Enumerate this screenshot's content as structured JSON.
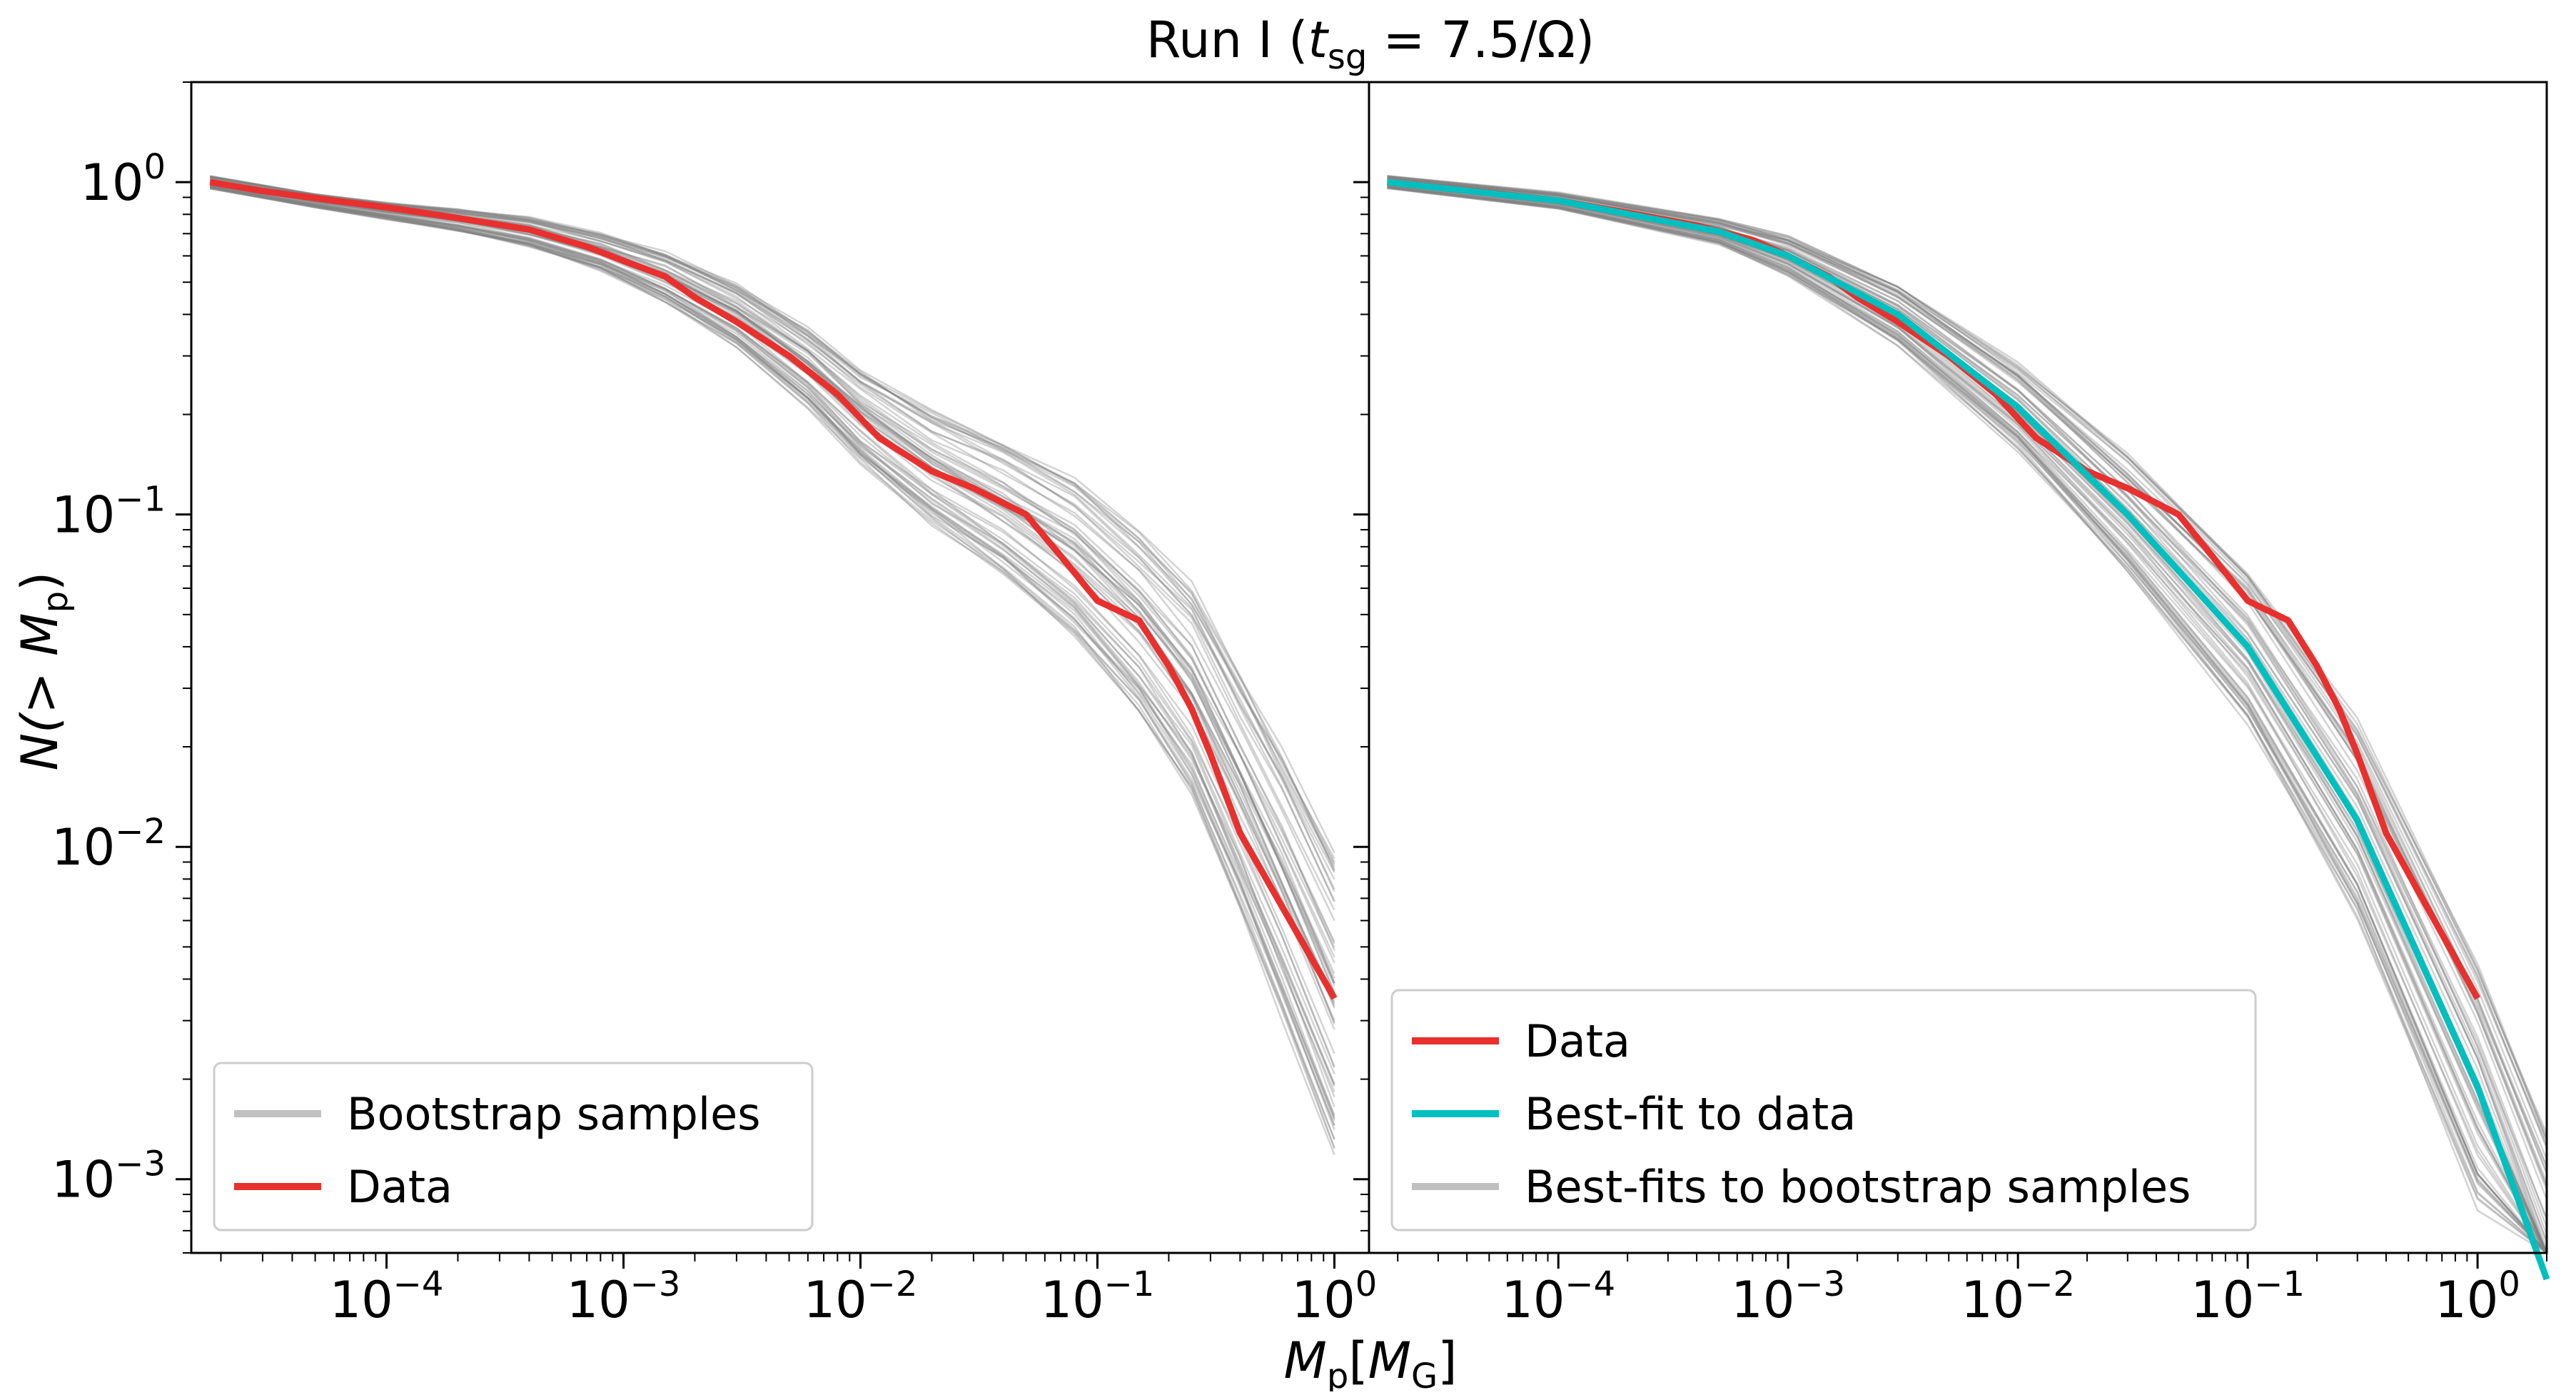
{
  "chart_data": {
    "title_prefix": "Run I (",
    "title_var": "t",
    "title_sub": "sg",
    "title_suffix": " = 7.5/Ω)",
    "xlabel_main": "M",
    "xlabel_sub": "p",
    "xlabel_bracket_open": "[",
    "xlabel_unit": "M",
    "xlabel_unit_sub": "G",
    "xlabel_bracket_close": "]",
    "ylabel_prefix": "N(> ",
    "ylabel_var": "M",
    "ylabel_sub": "p",
    "ylabel_suffix": ")",
    "x_tick_labels": [
      "10",
      "10",
      "10",
      "10",
      "10"
    ],
    "x_tick_exponents": [
      "−4",
      "−3",
      "−2",
      "−1",
      "0"
    ],
    "y_tick_labels": [
      "10",
      "10",
      "10",
      "10"
    ],
    "y_tick_exponents": [
      "0",
      "−1",
      "−2",
      "−3"
    ],
    "charts": [
      {
        "panel": "left",
        "type": "line",
        "xscale": "log",
        "yscale": "log",
        "xlim": [
          1.5e-05,
          1.4
        ],
        "ylim": [
          0.0006,
          2.0
        ],
        "legend_location": "lower-left",
        "series": [
          {
            "name": "Bootstrap samples",
            "color": "#808080",
            "style": "thin-ensemble",
            "ensemble_size": 60,
            "points": [
              [
                1.8e-05,
                1.0
              ],
              [
                5e-05,
                0.88
              ],
              [
                0.0001,
                0.82
              ],
              [
                0.0002,
                0.77
              ],
              [
                0.0004,
                0.71
              ],
              [
                0.0008,
                0.62
              ],
              [
                0.0015,
                0.52
              ],
              [
                0.003,
                0.4
              ],
              [
                0.006,
                0.28
              ],
              [
                0.01,
                0.2
              ],
              [
                0.02,
                0.14
              ],
              [
                0.04,
                0.105
              ],
              [
                0.08,
                0.075
              ],
              [
                0.15,
                0.048
              ],
              [
                0.25,
                0.03
              ],
              [
                0.4,
                0.015
              ],
              [
                0.6,
                0.008
              ],
              [
                1.0,
                0.0035
              ]
            ]
          },
          {
            "name": "Data",
            "color": "#e8302e",
            "style": "thick",
            "points": [
              [
                1.8e-05,
                1.0
              ],
              [
                3e-05,
                0.94
              ],
              [
                6e-05,
                0.88
              ],
              [
                0.0001,
                0.84
              ],
              [
                0.0002,
                0.78
              ],
              [
                0.0004,
                0.72
              ],
              [
                0.0007,
                0.64
              ],
              [
                0.001,
                0.58
              ],
              [
                0.0015,
                0.52
              ],
              [
                0.002,
                0.45
              ],
              [
                0.003,
                0.38
              ],
              [
                0.005,
                0.3
              ],
              [
                0.008,
                0.23
              ],
              [
                0.012,
                0.17
              ],
              [
                0.02,
                0.135
              ],
              [
                0.03,
                0.12
              ],
              [
                0.05,
                0.1
              ],
              [
                0.07,
                0.075
              ],
              [
                0.1,
                0.055
              ],
              [
                0.15,
                0.048
              ],
              [
                0.2,
                0.035
              ],
              [
                0.25,
                0.026
              ],
              [
                0.3,
                0.019
              ],
              [
                0.4,
                0.011
              ],
              [
                1.0,
                0.0035
              ]
            ]
          }
        ]
      },
      {
        "panel": "right",
        "type": "line",
        "xscale": "log",
        "yscale": "log",
        "xlim": [
          1.5e-05,
          2.0
        ],
        "ylim": [
          0.0006,
          2.0
        ],
        "legend_location": "lower-left",
        "series": [
          {
            "name": "Data",
            "color": "#e8302e",
            "style": "thick",
            "points": [
              [
                1.8e-05,
                1.0
              ],
              [
                5e-05,
                0.93
              ],
              [
                0.0001,
                0.88
              ],
              [
                0.0002,
                0.81
              ],
              [
                0.0004,
                0.74
              ],
              [
                0.0007,
                0.67
              ],
              [
                0.001,
                0.6
              ],
              [
                0.0015,
                0.52
              ],
              [
                0.002,
                0.45
              ],
              [
                0.003,
                0.38
              ],
              [
                0.005,
                0.3
              ],
              [
                0.008,
                0.23
              ],
              [
                0.012,
                0.17
              ],
              [
                0.02,
                0.135
              ],
              [
                0.03,
                0.12
              ],
              [
                0.05,
                0.1
              ],
              [
                0.07,
                0.075
              ],
              [
                0.1,
                0.055
              ],
              [
                0.15,
                0.048
              ],
              [
                0.2,
                0.035
              ],
              [
                0.25,
                0.026
              ],
              [
                0.3,
                0.019
              ],
              [
                0.4,
                0.011
              ],
              [
                1.0,
                0.0035
              ]
            ]
          },
          {
            "name": "Best-fit to data",
            "color": "#00bfbf",
            "style": "thick",
            "points": [
              [
                1.8e-05,
                1.0
              ],
              [
                0.0001,
                0.88
              ],
              [
                0.0005,
                0.71
              ],
              [
                0.001,
                0.6
              ],
              [
                0.003,
                0.4
              ],
              [
                0.01,
                0.21
              ],
              [
                0.03,
                0.1
              ],
              [
                0.1,
                0.04
              ],
              [
                0.3,
                0.012
              ],
              [
                1.0,
                0.0019
              ],
              [
                2.0,
                0.0005
              ]
            ]
          },
          {
            "name": "Best-fits to bootstrap samples",
            "color": "#808080",
            "style": "thin-ensemble",
            "ensemble_size": 60,
            "points": [
              [
                1.8e-05,
                1.0
              ],
              [
                0.0001,
                0.88
              ],
              [
                0.0005,
                0.71
              ],
              [
                0.001,
                0.6
              ],
              [
                0.003,
                0.4
              ],
              [
                0.01,
                0.21
              ],
              [
                0.03,
                0.1
              ],
              [
                0.1,
                0.04
              ],
              [
                0.3,
                0.012
              ],
              [
                1.0,
                0.0019
              ],
              [
                2.0,
                0.0005
              ]
            ]
          }
        ]
      }
    ]
  }
}
